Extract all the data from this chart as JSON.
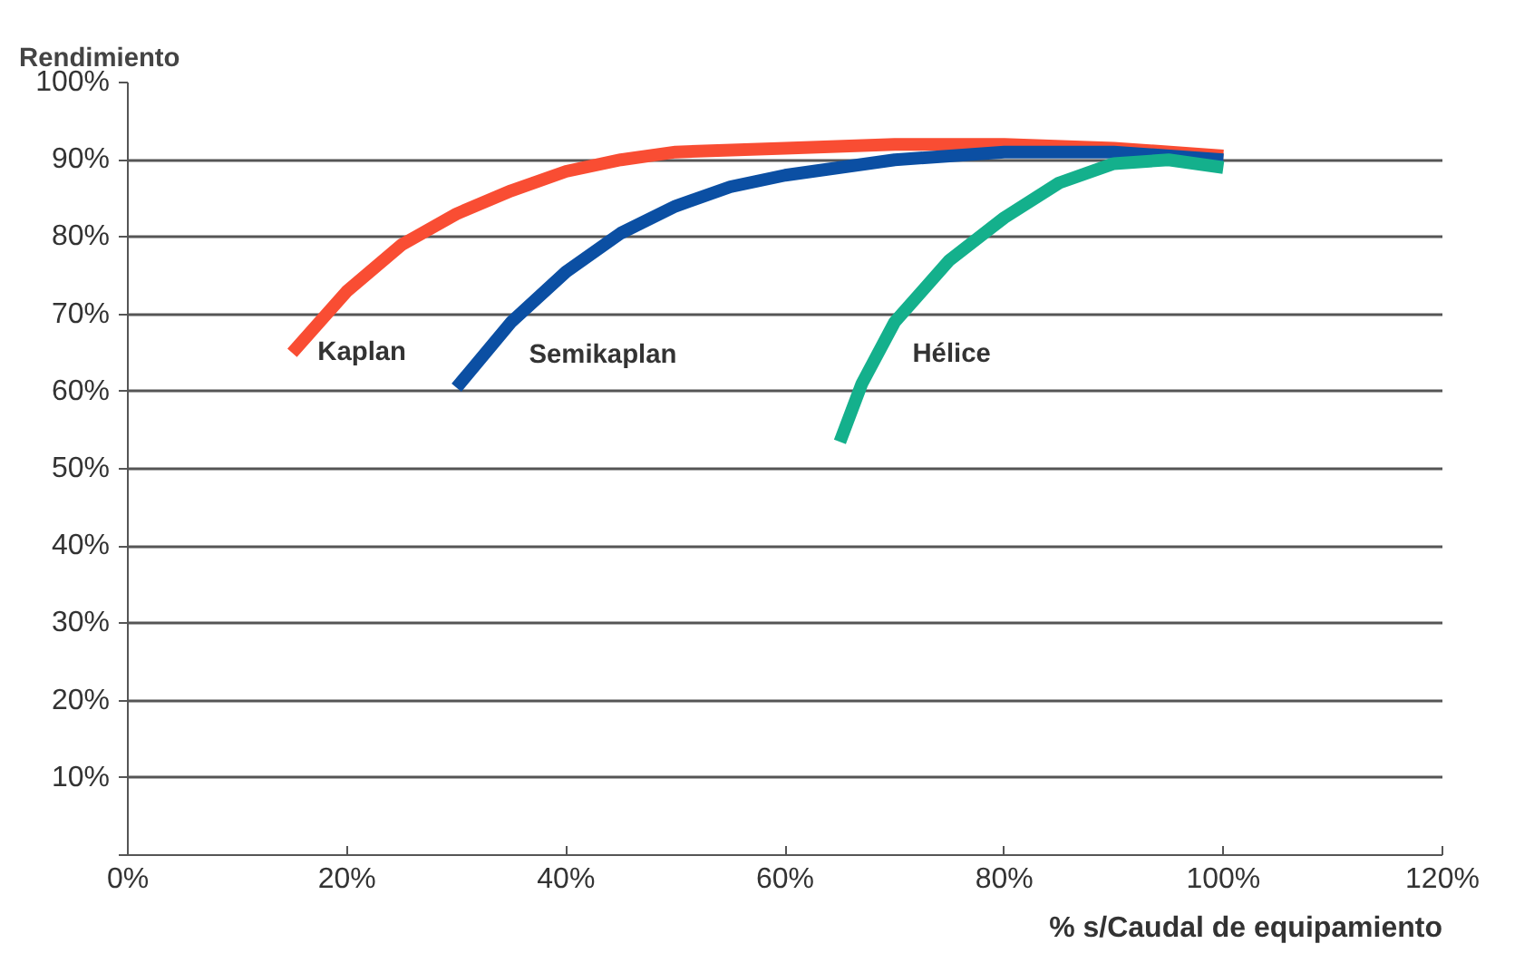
{
  "chart_data": {
    "type": "line",
    "ylabel": "Rendimiento",
    "xlabel": "% s/Caudal de equipamiento",
    "xlim": [
      0,
      120
    ],
    "ylim": [
      0,
      100
    ],
    "xticks": [
      {
        "value": 0,
        "label": "0%"
      },
      {
        "value": 20,
        "label": "20%"
      },
      {
        "value": 40,
        "label": "40%"
      },
      {
        "value": 60,
        "label": "60%"
      },
      {
        "value": 80,
        "label": "80%"
      },
      {
        "value": 100,
        "label": "100%"
      },
      {
        "value": 120,
        "label": "120%"
      }
    ],
    "yticks": [
      {
        "value": 0,
        "label": null
      },
      {
        "value": 10,
        "label": "10%"
      },
      {
        "value": 20,
        "label": "20%"
      },
      {
        "value": 30,
        "label": "30%"
      },
      {
        "value": 40,
        "label": "40%"
      },
      {
        "value": 50,
        "label": "50%"
      },
      {
        "value": 60,
        "label": "60%"
      },
      {
        "value": 70,
        "label": "70%"
      },
      {
        "value": 80,
        "label": "80%"
      },
      {
        "value": 90,
        "label": "90%"
      },
      {
        "value": 100,
        "label": "100%"
      }
    ],
    "grid": "y",
    "series": [
      {
        "name": "Kaplan",
        "color": "#f94d33",
        "x": [
          15,
          20,
          25,
          30,
          35,
          40,
          45,
          50,
          60,
          70,
          80,
          90,
          100
        ],
        "values": [
          65,
          73,
          79,
          83,
          86,
          88.5,
          90,
          91,
          91.5,
          92,
          92,
          91.5,
          90.5
        ]
      },
      {
        "name": "Semikaplan",
        "color": "#0b4fa3",
        "x": [
          30,
          35,
          40,
          45,
          50,
          55,
          60,
          70,
          80,
          90,
          100
        ],
        "values": [
          60.5,
          69,
          75.5,
          80.5,
          84,
          86.5,
          88,
          90,
          91,
          91,
          90
        ]
      },
      {
        "name": "Hélice",
        "color": "#14b08c",
        "x": [
          65,
          67,
          70,
          75,
          80,
          85,
          90,
          95,
          100
        ],
        "values": [
          53.5,
          61,
          69,
          77,
          82.5,
          87,
          89.5,
          90,
          89
        ]
      }
    ]
  }
}
